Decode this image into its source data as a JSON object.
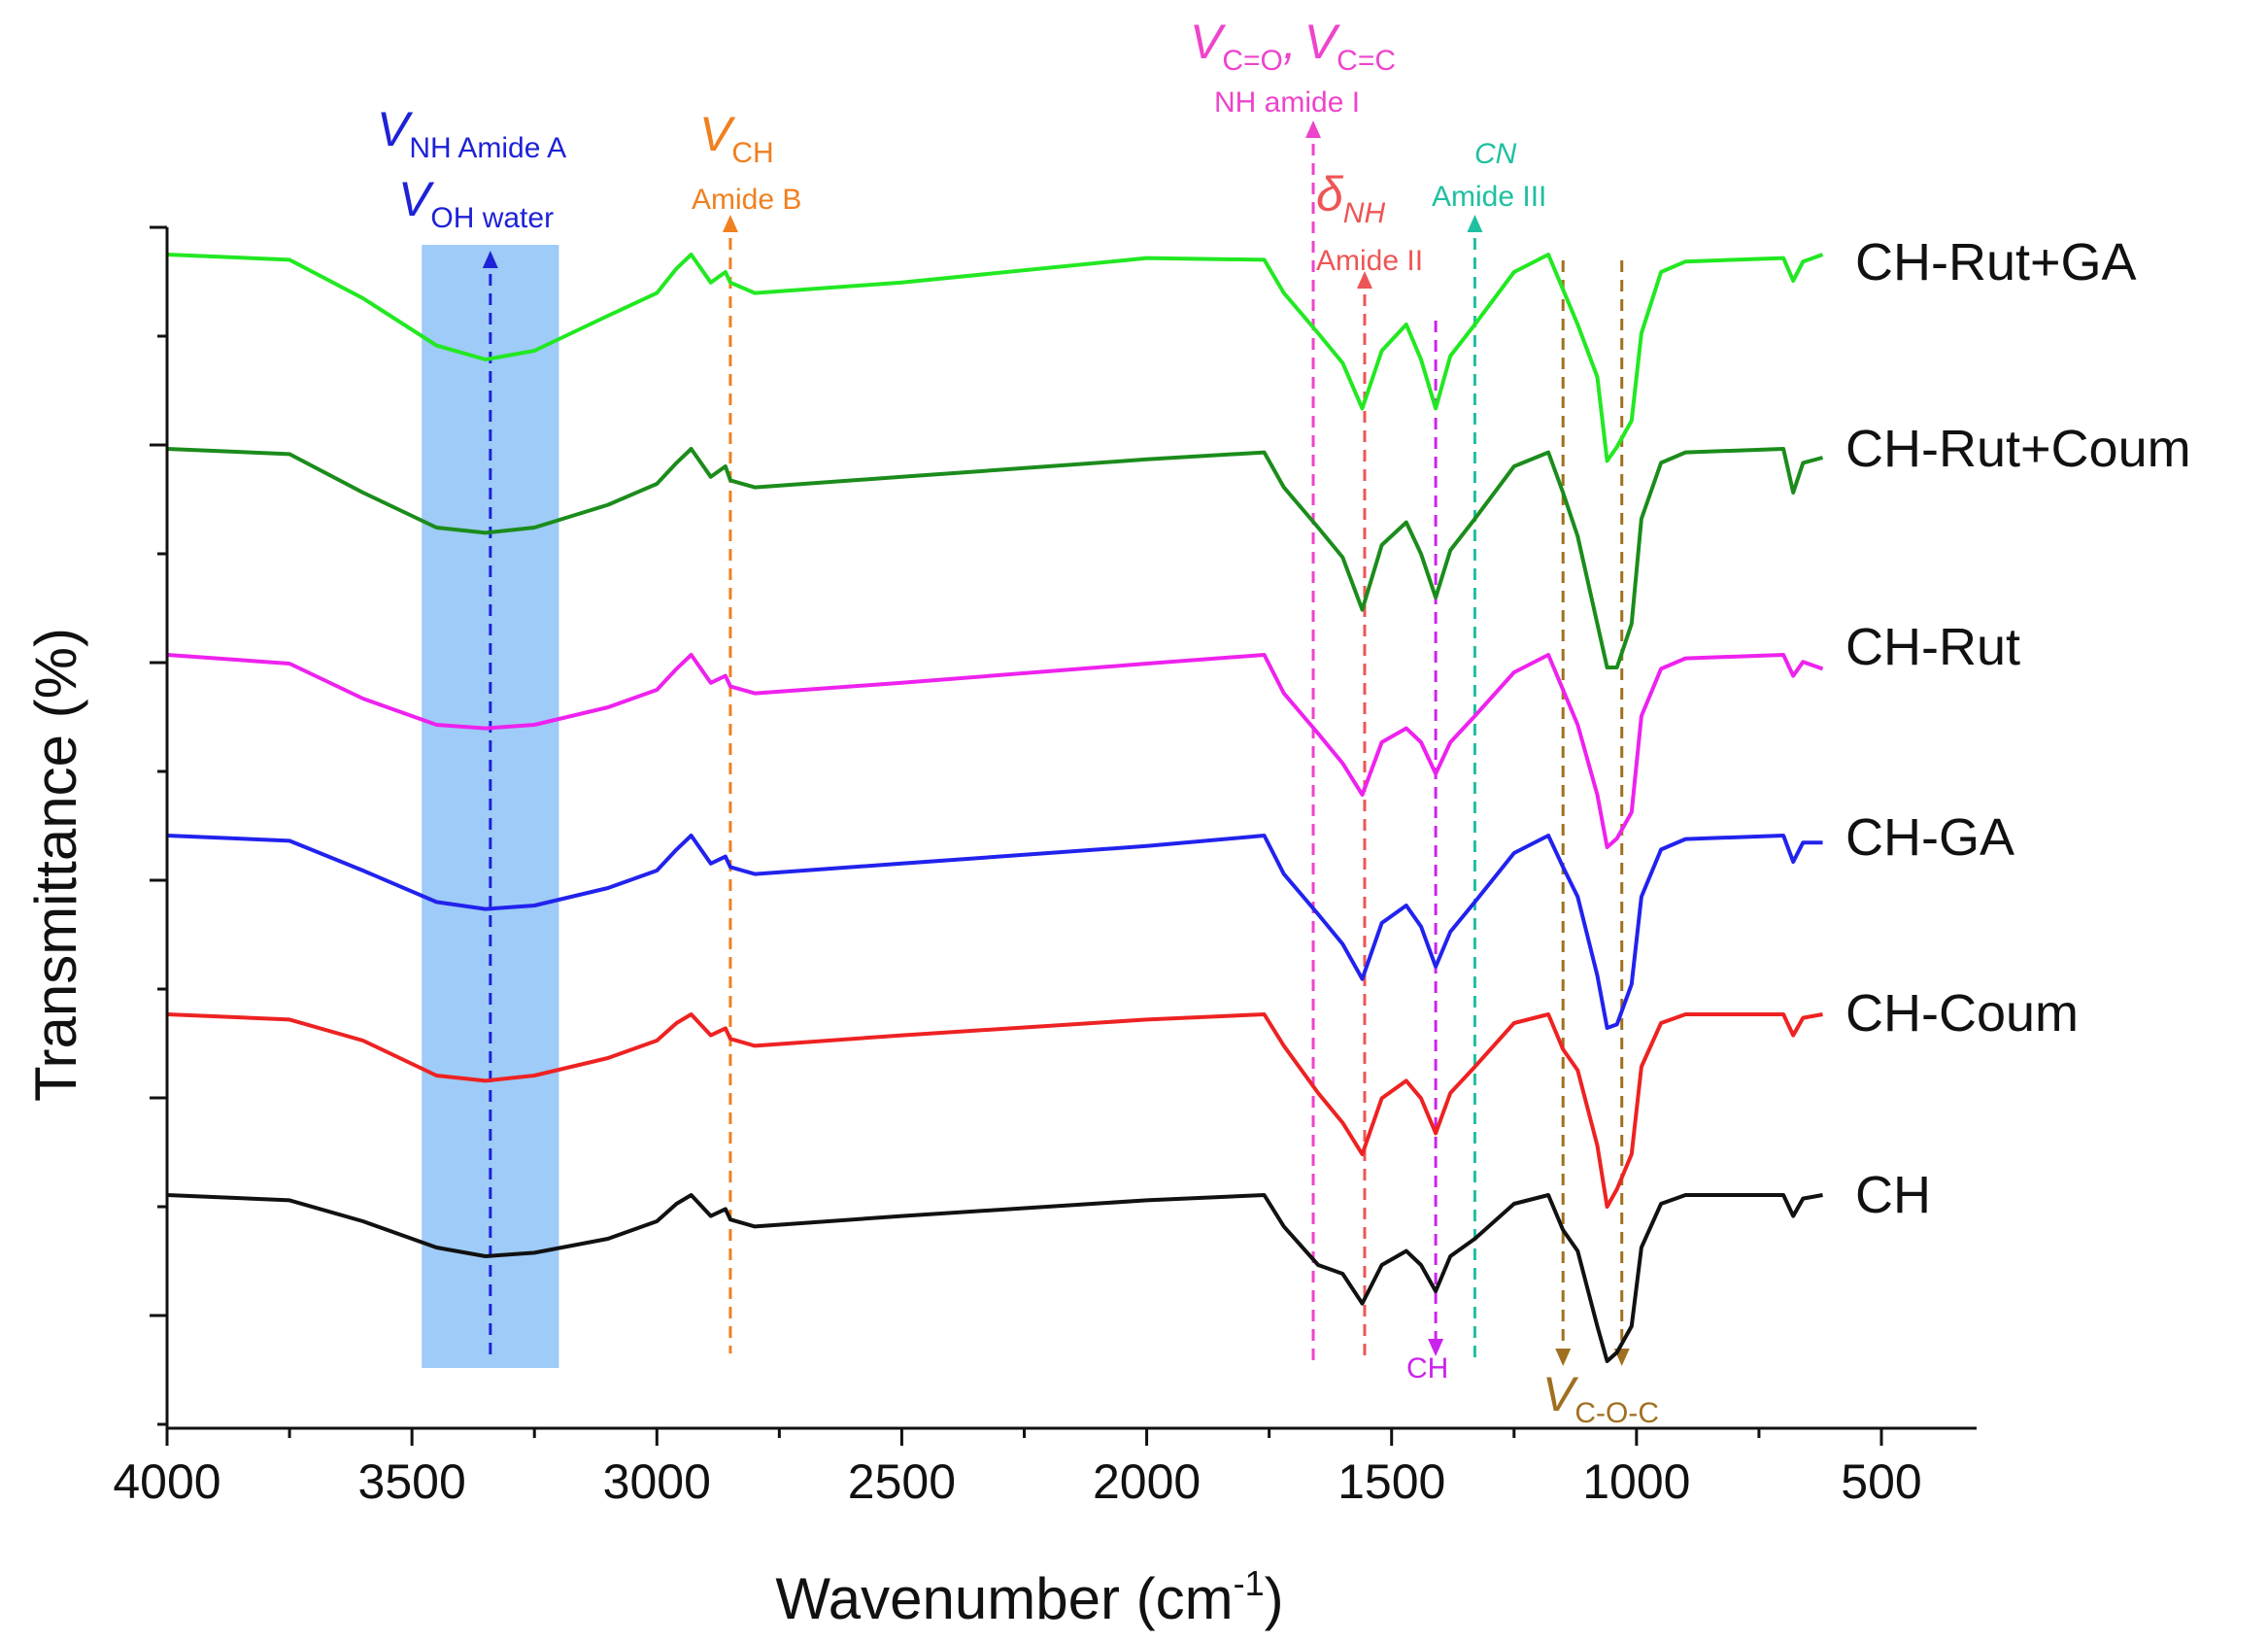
{
  "chart_data": {
    "type": "line",
    "xlabel": "Wavenumber (cm",
    "xlabel_sup": "-1",
    "xlabel_close": ")",
    "ylabel": "Transmittance (%)",
    "xlim": [
      4000,
      300
    ],
    "x_reversed": true,
    "x_ticks": [
      4000,
      3500,
      3000,
      2500,
      2000,
      1500,
      1000,
      500
    ],
    "x_tick_labels": [
      "4000",
      "3500",
      "3000",
      "2500",
      "2000",
      "1500",
      "1000",
      "500"
    ],
    "y_tick_labels_shown": false,
    "legend": "labels at right end of each trace",
    "shaded_region": {
      "x_from": 3480,
      "x_to": 3200,
      "color": "#9ecbf7"
    },
    "series": [
      {
        "name": "CH-Rut+GA",
        "color": "#22e822",
        "points": [
          [
            4000,
            0.0
          ],
          [
            3750,
            -3
          ],
          [
            3600,
            -25
          ],
          [
            3450,
            -52
          ],
          [
            3350,
            -60
          ],
          [
            3250,
            -55
          ],
          [
            3100,
            -35
          ],
          [
            3000,
            -22
          ],
          [
            2960,
            -8
          ],
          [
            2930,
            0
          ],
          [
            2890,
            -16
          ],
          [
            2860,
            -10
          ],
          [
            2850,
            -16
          ],
          [
            2800,
            -22
          ],
          [
            2500,
            -16
          ],
          [
            2000,
            -2
          ],
          [
            1760,
            -3
          ],
          [
            1720,
            -22
          ],
          [
            1650,
            -45
          ],
          [
            1600,
            -62
          ],
          [
            1560,
            -88
          ],
          [
            1520,
            -55
          ],
          [
            1470,
            -40
          ],
          [
            1440,
            -60
          ],
          [
            1410,
            -88
          ],
          [
            1380,
            -58
          ],
          [
            1330,
            -40
          ],
          [
            1250,
            -10
          ],
          [
            1180,
            0
          ],
          [
            1150,
            -20
          ],
          [
            1120,
            -40
          ],
          [
            1080,
            -70
          ],
          [
            1060,
            -118
          ],
          [
            1040,
            -110
          ],
          [
            1010,
            -95
          ],
          [
            990,
            -45
          ],
          [
            950,
            -10
          ],
          [
            900,
            -4
          ],
          [
            700,
            -2
          ],
          [
            680,
            -15
          ],
          [
            660,
            -4
          ],
          [
            620,
            0
          ]
        ]
      },
      {
        "name": "CH-Rut+Coum",
        "color": "#1b8c1b",
        "points": [
          [
            4000,
            0.0
          ],
          [
            3750,
            -3
          ],
          [
            3600,
            -25
          ],
          [
            3450,
            -45
          ],
          [
            3350,
            -48
          ],
          [
            3250,
            -45
          ],
          [
            3100,
            -32
          ],
          [
            3000,
            -20
          ],
          [
            2960,
            -8
          ],
          [
            2930,
            0
          ],
          [
            2890,
            -16
          ],
          [
            2860,
            -10
          ],
          [
            2850,
            -18
          ],
          [
            2800,
            -22
          ],
          [
            2500,
            -16
          ],
          [
            2000,
            -6
          ],
          [
            1760,
            -2
          ],
          [
            1720,
            -22
          ],
          [
            1650,
            -45
          ],
          [
            1600,
            -62
          ],
          [
            1560,
            -92
          ],
          [
            1520,
            -55
          ],
          [
            1470,
            -42
          ],
          [
            1440,
            -60
          ],
          [
            1410,
            -85
          ],
          [
            1380,
            -58
          ],
          [
            1330,
            -40
          ],
          [
            1250,
            -10
          ],
          [
            1180,
            -2
          ],
          [
            1150,
            -25
          ],
          [
            1120,
            -50
          ],
          [
            1080,
            -100
          ],
          [
            1060,
            -125
          ],
          [
            1040,
            -125
          ],
          [
            1010,
            -100
          ],
          [
            990,
            -40
          ],
          [
            950,
            -8
          ],
          [
            900,
            -2
          ],
          [
            700,
            0
          ],
          [
            680,
            -25
          ],
          [
            660,
            -8
          ],
          [
            620,
            -5
          ]
        ]
      },
      {
        "name": "CH-Rut",
        "color": "#ee22ee",
        "points": [
          [
            4000,
            0.0
          ],
          [
            3750,
            -5
          ],
          [
            3600,
            -25
          ],
          [
            3450,
            -40
          ],
          [
            3350,
            -42
          ],
          [
            3250,
            -40
          ],
          [
            3100,
            -30
          ],
          [
            3000,
            -20
          ],
          [
            2960,
            -8
          ],
          [
            2930,
            0
          ],
          [
            2890,
            -16
          ],
          [
            2860,
            -12
          ],
          [
            2850,
            -18
          ],
          [
            2800,
            -22
          ],
          [
            2500,
            -16
          ],
          [
            2000,
            -5
          ],
          [
            1760,
            0
          ],
          [
            1720,
            -22
          ],
          [
            1650,
            -45
          ],
          [
            1600,
            -62
          ],
          [
            1560,
            -80
          ],
          [
            1520,
            -50
          ],
          [
            1470,
            -42
          ],
          [
            1440,
            -50
          ],
          [
            1410,
            -68
          ],
          [
            1380,
            -50
          ],
          [
            1330,
            -35
          ],
          [
            1250,
            -10
          ],
          [
            1180,
            0
          ],
          [
            1150,
            -20
          ],
          [
            1120,
            -40
          ],
          [
            1080,
            -80
          ],
          [
            1060,
            -110
          ],
          [
            1040,
            -105
          ],
          [
            1010,
            -90
          ],
          [
            990,
            -35
          ],
          [
            950,
            -8
          ],
          [
            900,
            -2
          ],
          [
            700,
            0
          ],
          [
            680,
            -12
          ],
          [
            660,
            -4
          ],
          [
            620,
            -8
          ]
        ]
      },
      {
        "name": "CH-GA",
        "color": "#2222ee",
        "points": [
          [
            4000,
            0.0
          ],
          [
            3750,
            -3
          ],
          [
            3600,
            -20
          ],
          [
            3450,
            -38
          ],
          [
            3350,
            -42
          ],
          [
            3250,
            -40
          ],
          [
            3100,
            -30
          ],
          [
            3000,
            -20
          ],
          [
            2960,
            -8
          ],
          [
            2930,
            0
          ],
          [
            2890,
            -16
          ],
          [
            2860,
            -12
          ],
          [
            2850,
            -18
          ],
          [
            2800,
            -22
          ],
          [
            2500,
            -16
          ],
          [
            2000,
            -6
          ],
          [
            1760,
            0
          ],
          [
            1720,
            -22
          ],
          [
            1650,
            -45
          ],
          [
            1600,
            -62
          ],
          [
            1560,
            -82
          ],
          [
            1520,
            -50
          ],
          [
            1470,
            -40
          ],
          [
            1440,
            -52
          ],
          [
            1410,
            -75
          ],
          [
            1380,
            -55
          ],
          [
            1330,
            -38
          ],
          [
            1250,
            -10
          ],
          [
            1180,
            0
          ],
          [
            1150,
            -18
          ],
          [
            1120,
            -35
          ],
          [
            1080,
            -80
          ],
          [
            1060,
            -110
          ],
          [
            1040,
            -108
          ],
          [
            1010,
            -85
          ],
          [
            990,
            -35
          ],
          [
            950,
            -8
          ],
          [
            900,
            -2
          ],
          [
            700,
            0
          ],
          [
            680,
            -15
          ],
          [
            660,
            -4
          ],
          [
            620,
            -4
          ]
        ]
      },
      {
        "name": "CH-Coum",
        "color": "#ee2222",
        "points": [
          [
            4000,
            0.0
          ],
          [
            3750,
            -3
          ],
          [
            3600,
            -15
          ],
          [
            3450,
            -35
          ],
          [
            3350,
            -38
          ],
          [
            3250,
            -35
          ],
          [
            3100,
            -25
          ],
          [
            3000,
            -15
          ],
          [
            2960,
            -5
          ],
          [
            2930,
            0
          ],
          [
            2890,
            -12
          ],
          [
            2860,
            -8
          ],
          [
            2850,
            -14
          ],
          [
            2800,
            -18
          ],
          [
            2500,
            -12
          ],
          [
            2000,
            -3
          ],
          [
            1760,
            0
          ],
          [
            1720,
            -18
          ],
          [
            1650,
            -45
          ],
          [
            1600,
            -62
          ],
          [
            1560,
            -80
          ],
          [
            1520,
            -48
          ],
          [
            1470,
            -38
          ],
          [
            1440,
            -48
          ],
          [
            1410,
            -68
          ],
          [
            1380,
            -45
          ],
          [
            1330,
            -30
          ],
          [
            1250,
            -5
          ],
          [
            1180,
            0
          ],
          [
            1150,
            -20
          ],
          [
            1120,
            -32
          ],
          [
            1080,
            -75
          ],
          [
            1060,
            -110
          ],
          [
            1040,
            -100
          ],
          [
            1010,
            -80
          ],
          [
            990,
            -30
          ],
          [
            950,
            -5
          ],
          [
            900,
            0
          ],
          [
            700,
            0
          ],
          [
            680,
            -12
          ],
          [
            660,
            -2
          ],
          [
            620,
            0
          ]
        ]
      },
      {
        "name": "CH",
        "color": "#111111",
        "points": [
          [
            4000,
            0.0
          ],
          [
            3750,
            -3
          ],
          [
            3600,
            -15
          ],
          [
            3450,
            -30
          ],
          [
            3350,
            -35
          ],
          [
            3250,
            -33
          ],
          [
            3100,
            -25
          ],
          [
            3000,
            -15
          ],
          [
            2960,
            -5
          ],
          [
            2930,
            0
          ],
          [
            2890,
            -12
          ],
          [
            2860,
            -8
          ],
          [
            2850,
            -14
          ],
          [
            2800,
            -18
          ],
          [
            2500,
            -12
          ],
          [
            2000,
            -3
          ],
          [
            1760,
            0
          ],
          [
            1720,
            -18
          ],
          [
            1650,
            -40
          ],
          [
            1600,
            -45
          ],
          [
            1560,
            -62
          ],
          [
            1520,
            -40
          ],
          [
            1470,
            -32
          ],
          [
            1440,
            -40
          ],
          [
            1410,
            -55
          ],
          [
            1380,
            -35
          ],
          [
            1330,
            -25
          ],
          [
            1250,
            -5
          ],
          [
            1180,
            0
          ],
          [
            1150,
            -20
          ],
          [
            1120,
            -32
          ],
          [
            1080,
            -75
          ],
          [
            1060,
            -95
          ],
          [
            1040,
            -90
          ],
          [
            1010,
            -75
          ],
          [
            990,
            -30
          ],
          [
            950,
            -5
          ],
          [
            900,
            0
          ],
          [
            700,
            0
          ],
          [
            680,
            -12
          ],
          [
            660,
            -2
          ],
          [
            620,
            0
          ]
        ]
      }
    ],
    "marker_lines": [
      {
        "x": 3340,
        "color": "#1e22d6",
        "direction": "up"
      },
      {
        "x": 2850,
        "color": "#f08020",
        "direction": "up"
      },
      {
        "x": 1660,
        "color": "#ee44cc",
        "direction": "up"
      },
      {
        "x": 1555,
        "color": "#ee5555",
        "direction": "up"
      },
      {
        "x": 1410,
        "color": "#cc22ee",
        "direction": "down"
      },
      {
        "x": 1330,
        "color": "#1fc0a0",
        "direction": "up"
      },
      {
        "x": 1150,
        "color": "#a07020",
        "direction": "down"
      },
      {
        "x": 1030,
        "color": "#a07020",
        "direction": "down"
      }
    ],
    "annotations": {
      "nh_amide_a": {
        "symbol": "V",
        "sub": "NH Amide A",
        "color": "#1e22d6"
      },
      "oh_water": {
        "symbol": "V",
        "sub": "OH water",
        "color": "#1e22d6"
      },
      "v_ch": {
        "symbol": "V",
        "sub": "CH",
        "note": "Amide B",
        "color": "#f08020"
      },
      "v_co_cc": {
        "symbol": "V",
        "sub1": "C=O",
        "sep": ",",
        "sub2": "C=C",
        "note": "NH amide I",
        "color": "#ee44cc"
      },
      "delta_nh": {
        "symbol": "δ",
        "sub": "NH",
        "note": "Amide II",
        "color": "#ee5555"
      },
      "cn": {
        "text": "CN",
        "note": "Amide III",
        "color": "#1fc0a0"
      },
      "ch_bend": {
        "text": "CH",
        "color": "#cc22ee"
      },
      "v_coc": {
        "symbol": "V",
        "sub": "C-O-C",
        "color": "#a07020"
      }
    }
  }
}
